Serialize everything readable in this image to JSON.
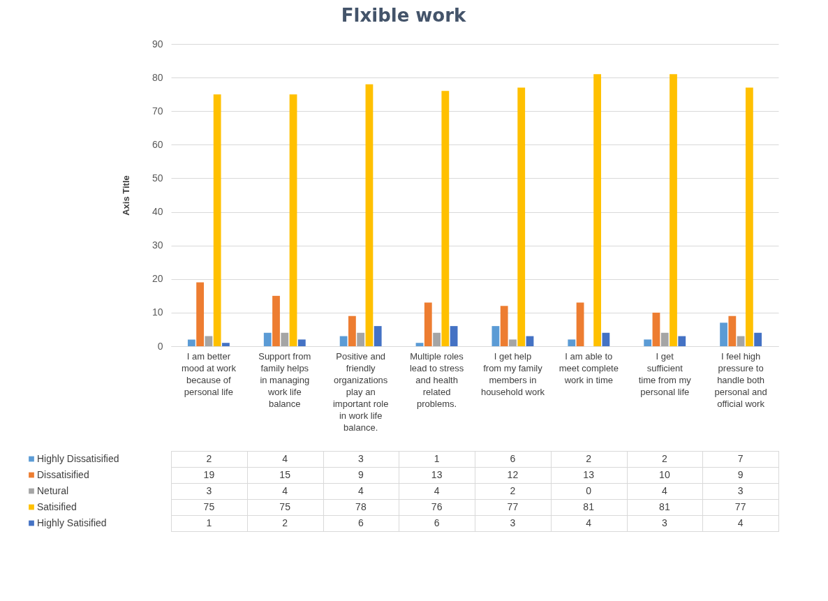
{
  "chart_data": {
    "type": "bar",
    "title": "Flxible work",
    "ylabel": "Axis Title",
    "categories": [
      "I am better mood at work because of personal life",
      "Support from family helps in managing work life balance",
      "Positive and friendly organizations play an important role in work life balance.",
      "Multiple roles lead to stress and health related problems.",
      "I get help from my family members in household work",
      "I am able to meet complete work in time",
      "I get sufficient time from my personal life",
      "I feel high pressure to handle both personal and official work"
    ],
    "series": [
      {
        "name": "Highly Dissatisified",
        "color": "#5b9bd5",
        "values": [
          2,
          4,
          3,
          1,
          6,
          2,
          2,
          7
        ]
      },
      {
        "name": "Dissatisified",
        "color": "#ed7d31",
        "values": [
          19,
          15,
          9,
          13,
          12,
          13,
          10,
          9
        ]
      },
      {
        "name": "Netural",
        "color": "#a5a5a5",
        "values": [
          3,
          4,
          4,
          4,
          2,
          0,
          4,
          3
        ]
      },
      {
        "name": "Satisified",
        "color": "#ffc000",
        "values": [
          75,
          75,
          78,
          76,
          77,
          81,
          81,
          77
        ]
      },
      {
        "name": "Highly Satisified",
        "color": "#4472c4",
        "values": [
          1,
          2,
          6,
          6,
          3,
          4,
          3,
          4
        ]
      }
    ],
    "ylim": [
      0,
      90
    ],
    "yticks": [
      0,
      10,
      20,
      30,
      40,
      50,
      60,
      70,
      80,
      90
    ],
    "grid": "y",
    "legend": "bottom left",
    "data_labels": true
  }
}
